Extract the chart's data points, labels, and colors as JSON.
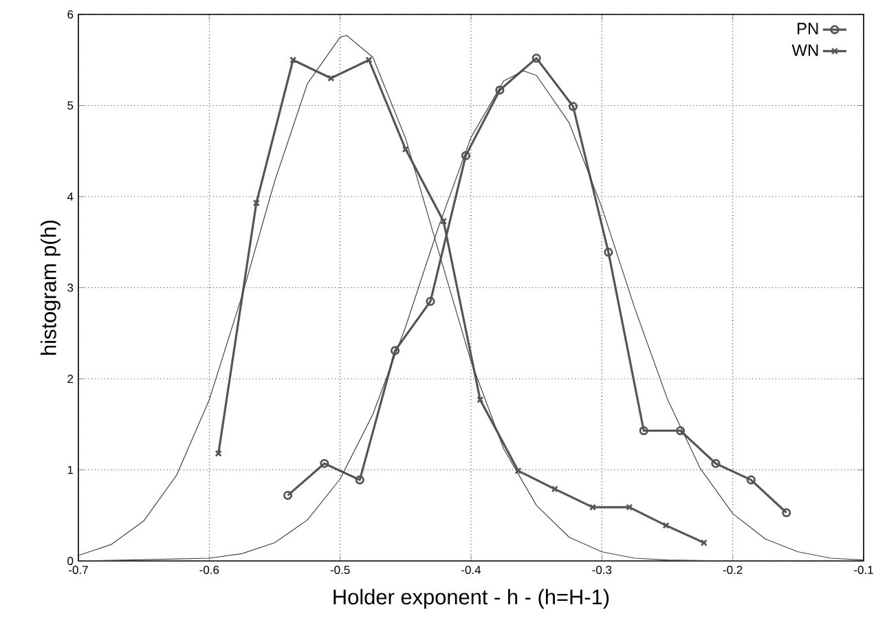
{
  "chart_data": {
    "type": "line",
    "xlabel": "Holder exponent   - h -  (h=H-1)",
    "ylabel": "histogram   p(h)",
    "xlim": [
      -0.7,
      -0.1
    ],
    "xticks": [
      -0.7,
      -0.6,
      -0.5,
      -0.4,
      -0.3,
      -0.2,
      -0.1
    ],
    "ylim": [
      0,
      6
    ],
    "yticks": [
      0,
      1,
      2,
      3,
      4,
      5,
      6
    ],
    "grid": true,
    "legend": "top right",
    "line_style": "solid",
    "series": [
      {
        "name": "PN",
        "color": "#555555",
        "marker": "circle",
        "x": [
          -0.54,
          -0.512,
          -0.485,
          -0.458,
          -0.431,
          -0.404,
          -0.378,
          -0.35,
          -0.322,
          -0.295,
          -0.268,
          -0.24,
          -0.213,
          -0.186,
          -0.159
        ],
        "values": [
          0.72,
          1.07,
          0.89,
          2.31,
          2.85,
          4.45,
          5.17,
          5.52,
          4.99,
          3.39,
          1.43,
          1.43,
          1.07,
          0.89,
          0.53
        ]
      },
      {
        "name": "WN",
        "color": "#555555",
        "marker": "cross",
        "x": [
          -0.593,
          -0.564,
          -0.536,
          -0.507,
          -0.478,
          -0.45,
          -0.421,
          -0.393,
          -0.364,
          -0.336,
          -0.307,
          -0.279,
          -0.251,
          -0.222
        ],
        "values": [
          1.18,
          3.93,
          5.5,
          5.3,
          5.5,
          4.52,
          3.73,
          1.77,
          0.99,
          0.79,
          0.59,
          0.59,
          0.39,
          0.2
        ]
      },
      {
        "color": "#444444",
        "marker": "none",
        "x": [
          -0.7,
          -0.675,
          -0.65,
          -0.625,
          -0.6,
          -0.575,
          -0.55,
          -0.525,
          -0.5,
          -0.495,
          -0.475,
          -0.45,
          -0.425,
          -0.4,
          -0.375,
          -0.35,
          -0.325,
          -0.3,
          -0.275,
          -0.25,
          -0.2,
          -0.1
        ],
        "values": [
          0.06,
          0.18,
          0.44,
          0.94,
          1.77,
          2.91,
          4.17,
          5.24,
          5.75,
          5.77,
          5.53,
          4.64,
          3.41,
          2.19,
          1.23,
          0.61,
          0.26,
          0.1,
          0.03,
          0.01,
          0.0,
          0.0
        ]
      },
      {
        "color": "#444444",
        "marker": "none",
        "x": [
          -0.7,
          -0.6,
          -0.575,
          -0.55,
          -0.525,
          -0.5,
          -0.475,
          -0.45,
          -0.425,
          -0.4,
          -0.375,
          -0.36,
          -0.35,
          -0.325,
          -0.3,
          -0.275,
          -0.25,
          -0.225,
          -0.2,
          -0.175,
          -0.15,
          -0.125,
          -0.1
        ],
        "values": [
          0.0,
          0.03,
          0.08,
          0.2,
          0.45,
          0.9,
          1.61,
          2.57,
          3.66,
          4.65,
          5.27,
          5.38,
          5.33,
          4.81,
          3.88,
          2.78,
          1.78,
          1.02,
          0.52,
          0.24,
          0.1,
          0.03,
          0.01
        ]
      }
    ]
  }
}
